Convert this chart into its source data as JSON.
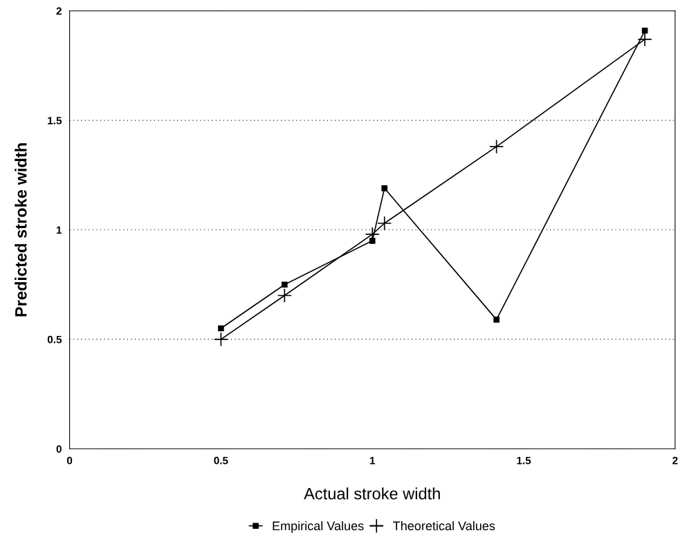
{
  "chart_data": {
    "type": "line",
    "xlabel": "Actual stroke width",
    "ylabel": "Predicted stroke width",
    "series": [
      {
        "name": "Empirical Values",
        "color": "#000000",
        "marker": "square",
        "x": [
          0.5,
          0.71,
          1.0,
          1.04,
          1.41,
          1.9
        ],
        "values": [
          0.55,
          0.75,
          0.95,
          1.19,
          0.59,
          1.91
        ]
      },
      {
        "name": "Theoretical Values",
        "color": "#000000",
        "marker": "cross",
        "x": [
          0.5,
          0.71,
          1.0,
          1.04,
          1.41,
          1.9
        ],
        "values": [
          0.5,
          0.7,
          0.98,
          1.03,
          1.38,
          1.87
        ]
      }
    ],
    "xlim": [
      0,
      2
    ],
    "xticks": [
      0,
      0.5,
      1,
      1.5,
      2
    ],
    "ylim": [
      0,
      2
    ],
    "yticks": [
      0,
      0.5,
      1,
      1.5,
      2
    ],
    "grid": "y",
    "legend": "bottom",
    "line_style": "solid"
  }
}
